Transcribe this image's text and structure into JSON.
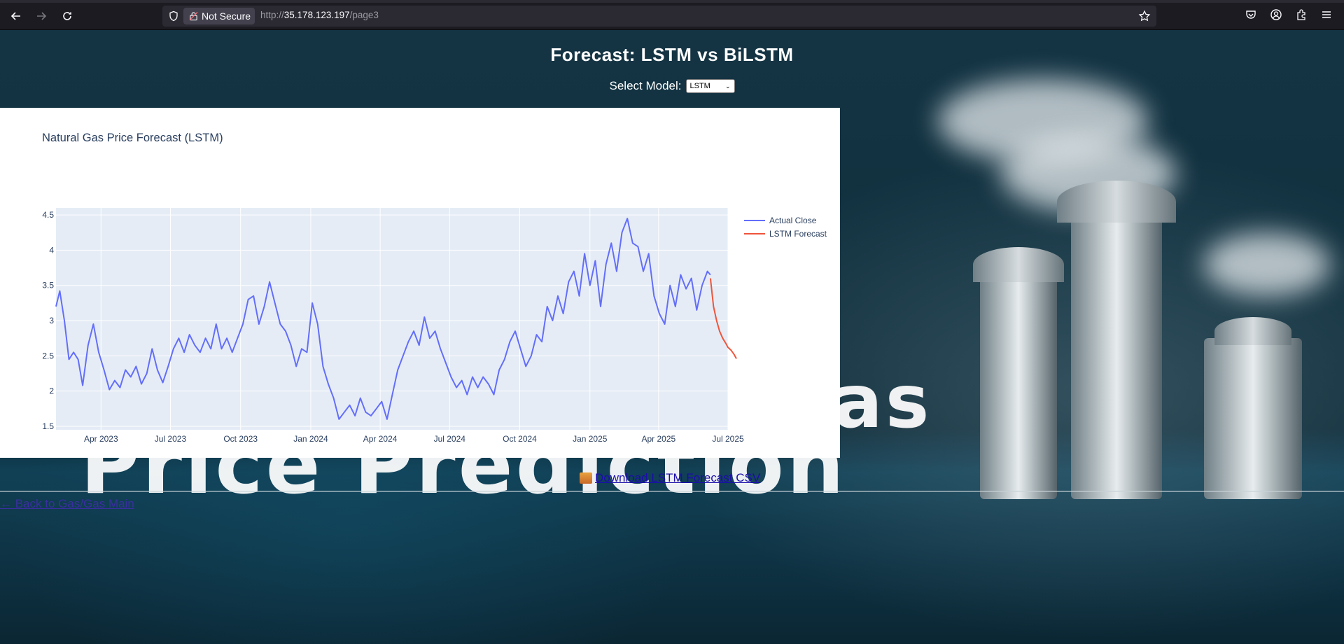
{
  "browser": {
    "security_label": "Not Secure",
    "url_prefix": "http://",
    "url_host": "35.178.123.197",
    "url_path": "/page3"
  },
  "page": {
    "title": "Forecast: LSTM vs BiLSTM",
    "select_label": "Select Model:",
    "select_value": "LSTM",
    "download_text": "Download LSTM Forecast CSV",
    "back_link_text": "← Back to Gas/Gas Main",
    "background_words": [
      "as",
      "Price Prediction"
    ]
  },
  "chart_data": {
    "type": "line",
    "title": "Natural Gas Price Forecast (LSTM)",
    "xlabel": "",
    "ylabel": "",
    "ylim": [
      1.45,
      4.6
    ],
    "y_ticks": [
      "1.5",
      "2",
      "2.5",
      "3",
      "3.5",
      "4",
      "4.5"
    ],
    "x_tick_labels": [
      "Apr 2023",
      "Jul 2023",
      "Oct 2023",
      "Jan 2024",
      "Apr 2024",
      "Jul 2024",
      "Oct 2024",
      "Jan 2025",
      "Apr 2025",
      "Jul 2025"
    ],
    "x_range": [
      "2023-02-01",
      "2025-07-01"
    ],
    "grid": true,
    "legend_position": "top-right",
    "series": [
      {
        "name": "Actual Close",
        "color": "#636efa",
        "x": [
          "2023-02-01",
          "2023-02-06",
          "2023-02-12",
          "2023-02-18",
          "2023-02-24",
          "2023-03-02",
          "2023-03-08",
          "2023-03-15",
          "2023-03-22",
          "2023-03-29",
          "2023-04-05",
          "2023-04-12",
          "2023-04-19",
          "2023-04-26",
          "2023-05-03",
          "2023-05-10",
          "2023-05-17",
          "2023-05-24",
          "2023-05-31",
          "2023-06-07",
          "2023-06-14",
          "2023-06-21",
          "2023-06-28",
          "2023-07-05",
          "2023-07-12",
          "2023-07-19",
          "2023-07-26",
          "2023-08-02",
          "2023-08-09",
          "2023-08-16",
          "2023-08-23",
          "2023-08-30",
          "2023-09-06",
          "2023-09-13",
          "2023-09-20",
          "2023-09-27",
          "2023-10-04",
          "2023-10-11",
          "2023-10-18",
          "2023-10-25",
          "2023-11-01",
          "2023-11-08",
          "2023-11-15",
          "2023-11-22",
          "2023-11-29",
          "2023-12-06",
          "2023-12-13",
          "2023-12-20",
          "2023-12-27",
          "2024-01-03",
          "2024-01-10",
          "2024-01-17",
          "2024-01-24",
          "2024-01-31",
          "2024-02-07",
          "2024-02-14",
          "2024-02-21",
          "2024-02-28",
          "2024-03-06",
          "2024-03-13",
          "2024-03-20",
          "2024-03-27",
          "2024-04-03",
          "2024-04-10",
          "2024-04-17",
          "2024-04-24",
          "2024-05-01",
          "2024-05-08",
          "2024-05-15",
          "2024-05-22",
          "2024-05-29",
          "2024-06-05",
          "2024-06-12",
          "2024-06-19",
          "2024-06-26",
          "2024-07-03",
          "2024-07-10",
          "2024-07-17",
          "2024-07-24",
          "2024-07-31",
          "2024-08-07",
          "2024-08-14",
          "2024-08-21",
          "2024-08-28",
          "2024-09-04",
          "2024-09-11",
          "2024-09-18",
          "2024-09-25",
          "2024-10-02",
          "2024-10-09",
          "2024-10-16",
          "2024-10-23",
          "2024-10-30",
          "2024-11-06",
          "2024-11-13",
          "2024-11-20",
          "2024-11-27",
          "2024-12-04",
          "2024-12-11",
          "2024-12-18",
          "2024-12-25",
          "2025-01-01",
          "2025-01-08",
          "2025-01-15",
          "2025-01-22",
          "2025-01-29",
          "2025-02-05",
          "2025-02-12",
          "2025-02-19",
          "2025-02-26",
          "2025-03-05",
          "2025-03-12",
          "2025-03-19",
          "2025-03-26",
          "2025-04-02",
          "2025-04-09",
          "2025-04-16",
          "2025-04-23",
          "2025-04-30",
          "2025-05-07",
          "2025-05-14",
          "2025-05-21",
          "2025-05-28",
          "2025-06-04",
          "2025-06-08"
        ],
        "values": [
          3.2,
          3.42,
          3.0,
          2.45,
          2.55,
          2.45,
          2.08,
          2.65,
          2.95,
          2.55,
          2.3,
          2.02,
          2.15,
          2.05,
          2.3,
          2.2,
          2.35,
          2.1,
          2.25,
          2.6,
          2.3,
          2.12,
          2.35,
          2.6,
          2.75,
          2.55,
          2.8,
          2.65,
          2.55,
          2.75,
          2.6,
          2.95,
          2.6,
          2.75,
          2.55,
          2.75,
          2.95,
          3.3,
          3.35,
          2.95,
          3.2,
          3.55,
          3.25,
          2.95,
          2.85,
          2.65,
          2.35,
          2.6,
          2.55,
          3.25,
          2.95,
          2.35,
          2.1,
          1.9,
          1.6,
          1.7,
          1.8,
          1.65,
          1.9,
          1.7,
          1.65,
          1.75,
          1.85,
          1.6,
          1.95,
          2.3,
          2.5,
          2.7,
          2.85,
          2.65,
          3.05,
          2.75,
          2.85,
          2.6,
          2.4,
          2.2,
          2.05,
          2.15,
          1.95,
          2.2,
          2.05,
          2.2,
          2.1,
          1.95,
          2.3,
          2.45,
          2.7,
          2.85,
          2.6,
          2.35,
          2.5,
          2.8,
          2.7,
          3.2,
          3.0,
          3.35,
          3.1,
          3.55,
          3.7,
          3.35,
          3.95,
          3.5,
          3.85,
          3.2,
          3.8,
          4.1,
          3.7,
          4.25,
          4.45,
          4.1,
          4.05,
          3.7,
          3.95,
          3.35,
          3.1,
          2.95,
          3.5,
          3.2,
          3.65,
          3.45,
          3.6,
          3.15,
          3.5,
          3.7,
          3.65
        ]
      },
      {
        "name": "LSTM Forecast",
        "color": "#ef553b",
        "x": [
          "2025-06-08",
          "2025-06-12",
          "2025-06-16",
          "2025-06-20",
          "2025-06-24",
          "2025-06-28",
          "2025-07-01",
          "2025-07-05",
          "2025-07-09",
          "2025-07-12"
        ],
        "values": [
          3.6,
          3.2,
          3.0,
          2.85,
          2.75,
          2.68,
          2.62,
          2.58,
          2.52,
          2.46
        ]
      }
    ]
  }
}
